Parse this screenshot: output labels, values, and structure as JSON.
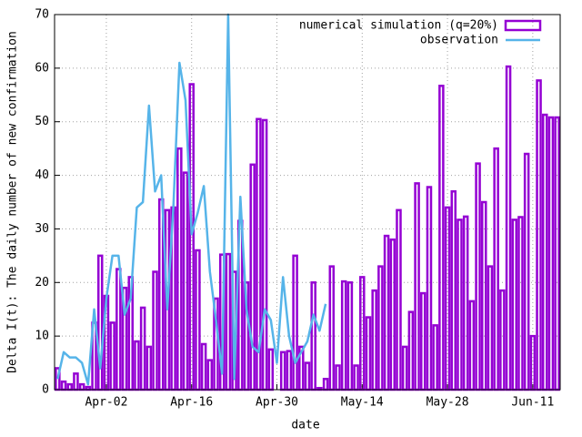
{
  "chart_data": {
    "type": "bar",
    "xlabel": "date",
    "ylabel": "Delta I(t): The daily number of new confirmation",
    "categories": [
      null,
      null,
      null,
      null,
      null,
      null,
      null,
      null,
      "Apr-02",
      null,
      null,
      null,
      null,
      null,
      null,
      null,
      null,
      null,
      null,
      null,
      null,
      null,
      "Apr-16",
      null,
      null,
      null,
      null,
      null,
      null,
      null,
      null,
      null,
      null,
      null,
      null,
      null,
      "Apr-30",
      null,
      null,
      null,
      null,
      null,
      null,
      null,
      null,
      null,
      null,
      null,
      null,
      null,
      "May-14",
      null,
      null,
      null,
      null,
      null,
      null,
      null,
      null,
      null,
      null,
      null,
      null,
      null,
      "May-28",
      null,
      null,
      null,
      null,
      null,
      null,
      null,
      null,
      null,
      null,
      null,
      null,
      null,
      "Jun-11",
      null,
      null,
      null,
      null
    ],
    "series": [
      {
        "name": "numerical simulation (q=20%)",
        "type": "bar",
        "color": "#9400d3",
        "values": [
          4,
          1.5,
          1,
          3,
          1,
          0.5,
          12.5,
          25,
          17.5,
          12.5,
          22.5,
          19,
          21,
          9,
          15.3,
          8,
          22,
          35.5,
          33.5,
          34,
          45,
          40.5,
          57,
          26,
          8.5,
          5.5,
          17,
          25.2,
          25.3,
          22,
          31.5,
          20,
          42,
          50.5,
          50.3,
          7.5,
          0,
          7,
          7.2,
          25,
          8,
          5,
          20,
          0.3,
          2,
          23,
          4.5,
          20.2,
          20,
          4.5,
          21,
          13.5,
          18.5,
          23,
          28.7,
          28,
          33.5,
          8,
          14.5,
          38.5,
          18,
          37.8,
          12,
          56.7,
          34,
          37,
          31.7,
          32.3,
          16.5,
          42.2,
          35,
          23,
          45,
          18.5,
          60.3,
          31.7,
          32.2,
          44,
          10,
          57.7,
          51.3,
          50.8,
          50.8
        ]
      },
      {
        "name": "observation",
        "type": "line",
        "color": "#56b4e9",
        "values": [
          2,
          7,
          6,
          6,
          5,
          1,
          15,
          4,
          17,
          25,
          25,
          14,
          17,
          34,
          35,
          53,
          37,
          40,
          15,
          34,
          61,
          54,
          29,
          33,
          38,
          22,
          13,
          3,
          70,
          2,
          36,
          15,
          8,
          7,
          15,
          13,
          5,
          21,
          10,
          5,
          7,
          9,
          14,
          11,
          16,
          null,
          null,
          null,
          null,
          null,
          null,
          null,
          null,
          null,
          null,
          null,
          null,
          null,
          null,
          null,
          null,
          null,
          null,
          null,
          null,
          null,
          null,
          null,
          null,
          null,
          null,
          null,
          null,
          null,
          null,
          null,
          null,
          null,
          null,
          null,
          null,
          null,
          null
        ]
      }
    ],
    "ylim": [
      0,
      70
    ],
    "yticks": [
      0,
      10,
      20,
      30,
      40,
      50,
      60,
      70
    ],
    "grid": true,
    "legend": "top-right"
  }
}
